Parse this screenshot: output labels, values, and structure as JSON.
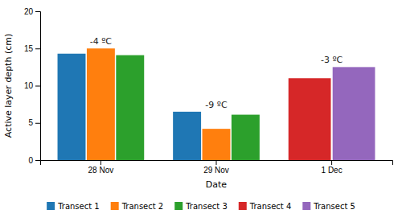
{
  "chart_data": {
    "type": "bar",
    "categories": [
      "28 Nov",
      "29 Nov",
      "1 Dec"
    ],
    "series": [
      {
        "name": "Transect 1",
        "values": [
          14.3,
          6.5,
          null
        ]
      },
      {
        "name": "Transect 2",
        "values": [
          15.0,
          4.2,
          null
        ]
      },
      {
        "name": "Transect 3",
        "values": [
          14.1,
          6.1,
          null
        ]
      },
      {
        "name": "Transect 4",
        "values": [
          null,
          null,
          11.0
        ]
      },
      {
        "name": "Transect 5",
        "values": [
          null,
          null,
          12.5
        ]
      }
    ],
    "annotations": [
      "-4 ºC",
      "-9 ºC",
      "-3 ºC"
    ],
    "xlabel": "Date",
    "ylabel": "Active layer depth (cm)",
    "ylim": [
      0,
      20
    ],
    "yticks": [
      0,
      5,
      10,
      15,
      20
    ],
    "legend": "bottom"
  }
}
